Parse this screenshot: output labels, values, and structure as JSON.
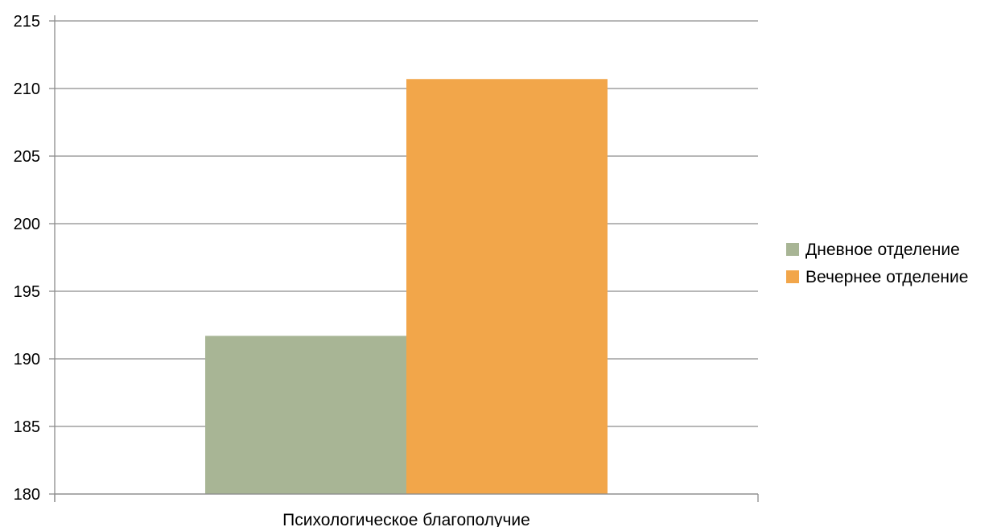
{
  "chart_data": {
    "type": "bar",
    "categories": [
      "Психологическое благополучие"
    ],
    "series": [
      {
        "name": "Дневное отделение",
        "values": [
          191.7
        ],
        "color": "#a8b595"
      },
      {
        "name": "Вечернее отделение",
        "values": [
          210.7
        ],
        "color": "#f2a64a"
      }
    ],
    "ylim": [
      180,
      215
    ],
    "yticks": [
      180,
      185,
      190,
      195,
      200,
      205,
      210,
      215
    ],
    "ytick_labels": [
      "180",
      "185",
      "190",
      "195",
      "200",
      "205",
      "210",
      "215"
    ],
    "grid": true,
    "legend_position": "right",
    "title": "",
    "xlabel": "",
    "ylabel": ""
  }
}
